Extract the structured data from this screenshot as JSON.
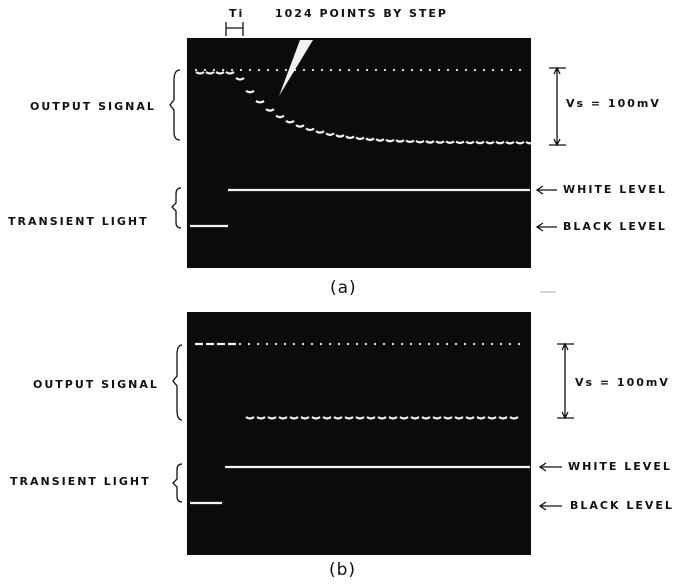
{
  "header": {
    "ti": "Ti",
    "caption": "1024 POINTS BY STEP"
  },
  "panels": [
    {
      "label": "(a)",
      "output_signal": "OUTPUT SIGNAL",
      "transient_light": "TRANSIENT LIGHT",
      "vs": "Vs = 100mV",
      "white_level": "WHITE LEVEL",
      "black_level": "BLACK LEVEL"
    },
    {
      "label": "(b)",
      "output_signal": "OUTPUT SIGNAL",
      "transient_light": "TRANSIENT LIGHT",
      "vs": "Vs = 100mV",
      "white_level": "WHITE LEVEL",
      "black_level": "BLACK LEVEL"
    }
  ]
}
